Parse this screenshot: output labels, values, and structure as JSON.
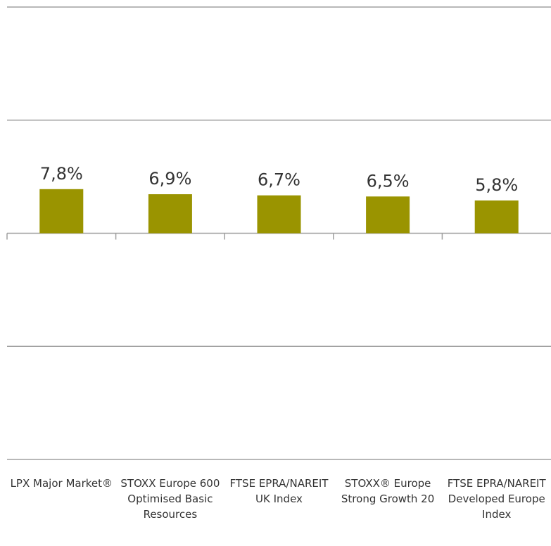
{
  "chart_data": {
    "type": "bar",
    "categories": [
      "LPX Major Market®",
      "STOXX Europe 600 Optimised Basic Resources",
      "FTSE EPRA/NAREIT UK Index",
      "STOXX® Europe Strong Growth 20",
      "FTSE EPRA/NAREIT Developed Europe Index"
    ],
    "values": [
      7.8,
      6.9,
      6.7,
      6.5,
      5.8
    ],
    "value_labels": [
      "7,8%",
      "6,9%",
      "6,7%",
      "6,5%",
      "5,8%"
    ],
    "color": "#9a9400",
    "ylim": [
      -40,
      40
    ],
    "yticks": [
      -40,
      -20,
      0,
      20,
      40
    ],
    "grid": true
  }
}
